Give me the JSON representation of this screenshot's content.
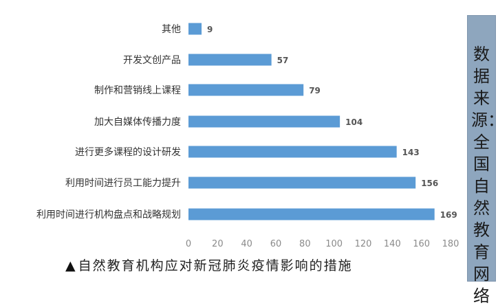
{
  "chart_data": {
    "type": "bar",
    "orientation": "horizontal",
    "categories": [
      "其他",
      "开发文创产品",
      "制作和营销线上课程",
      "加大自媒体传播力度",
      "进行更多课程的设计研发",
      "利用时间进行员工能力提升",
      "利用时间进行机构盘点和战略规划"
    ],
    "values": [
      9,
      57,
      79,
      104,
      143,
      156,
      169
    ],
    "value_labels": [
      "9",
      "57",
      "79",
      "104",
      "143",
      "156",
      "169"
    ],
    "x_ticks": [
      "0",
      "20",
      "40",
      "60",
      "80",
      "100",
      "120",
      "140",
      "160",
      "180"
    ],
    "xlim": [
      0,
      180
    ],
    "grid": false,
    "bar_color": "#5b9bd5"
  },
  "caption": {
    "marker": "▲",
    "text": "自然教育机构应对新冠肺炎疫情影响的措施"
  },
  "source_note": "数据来源：全国自然教育网络"
}
